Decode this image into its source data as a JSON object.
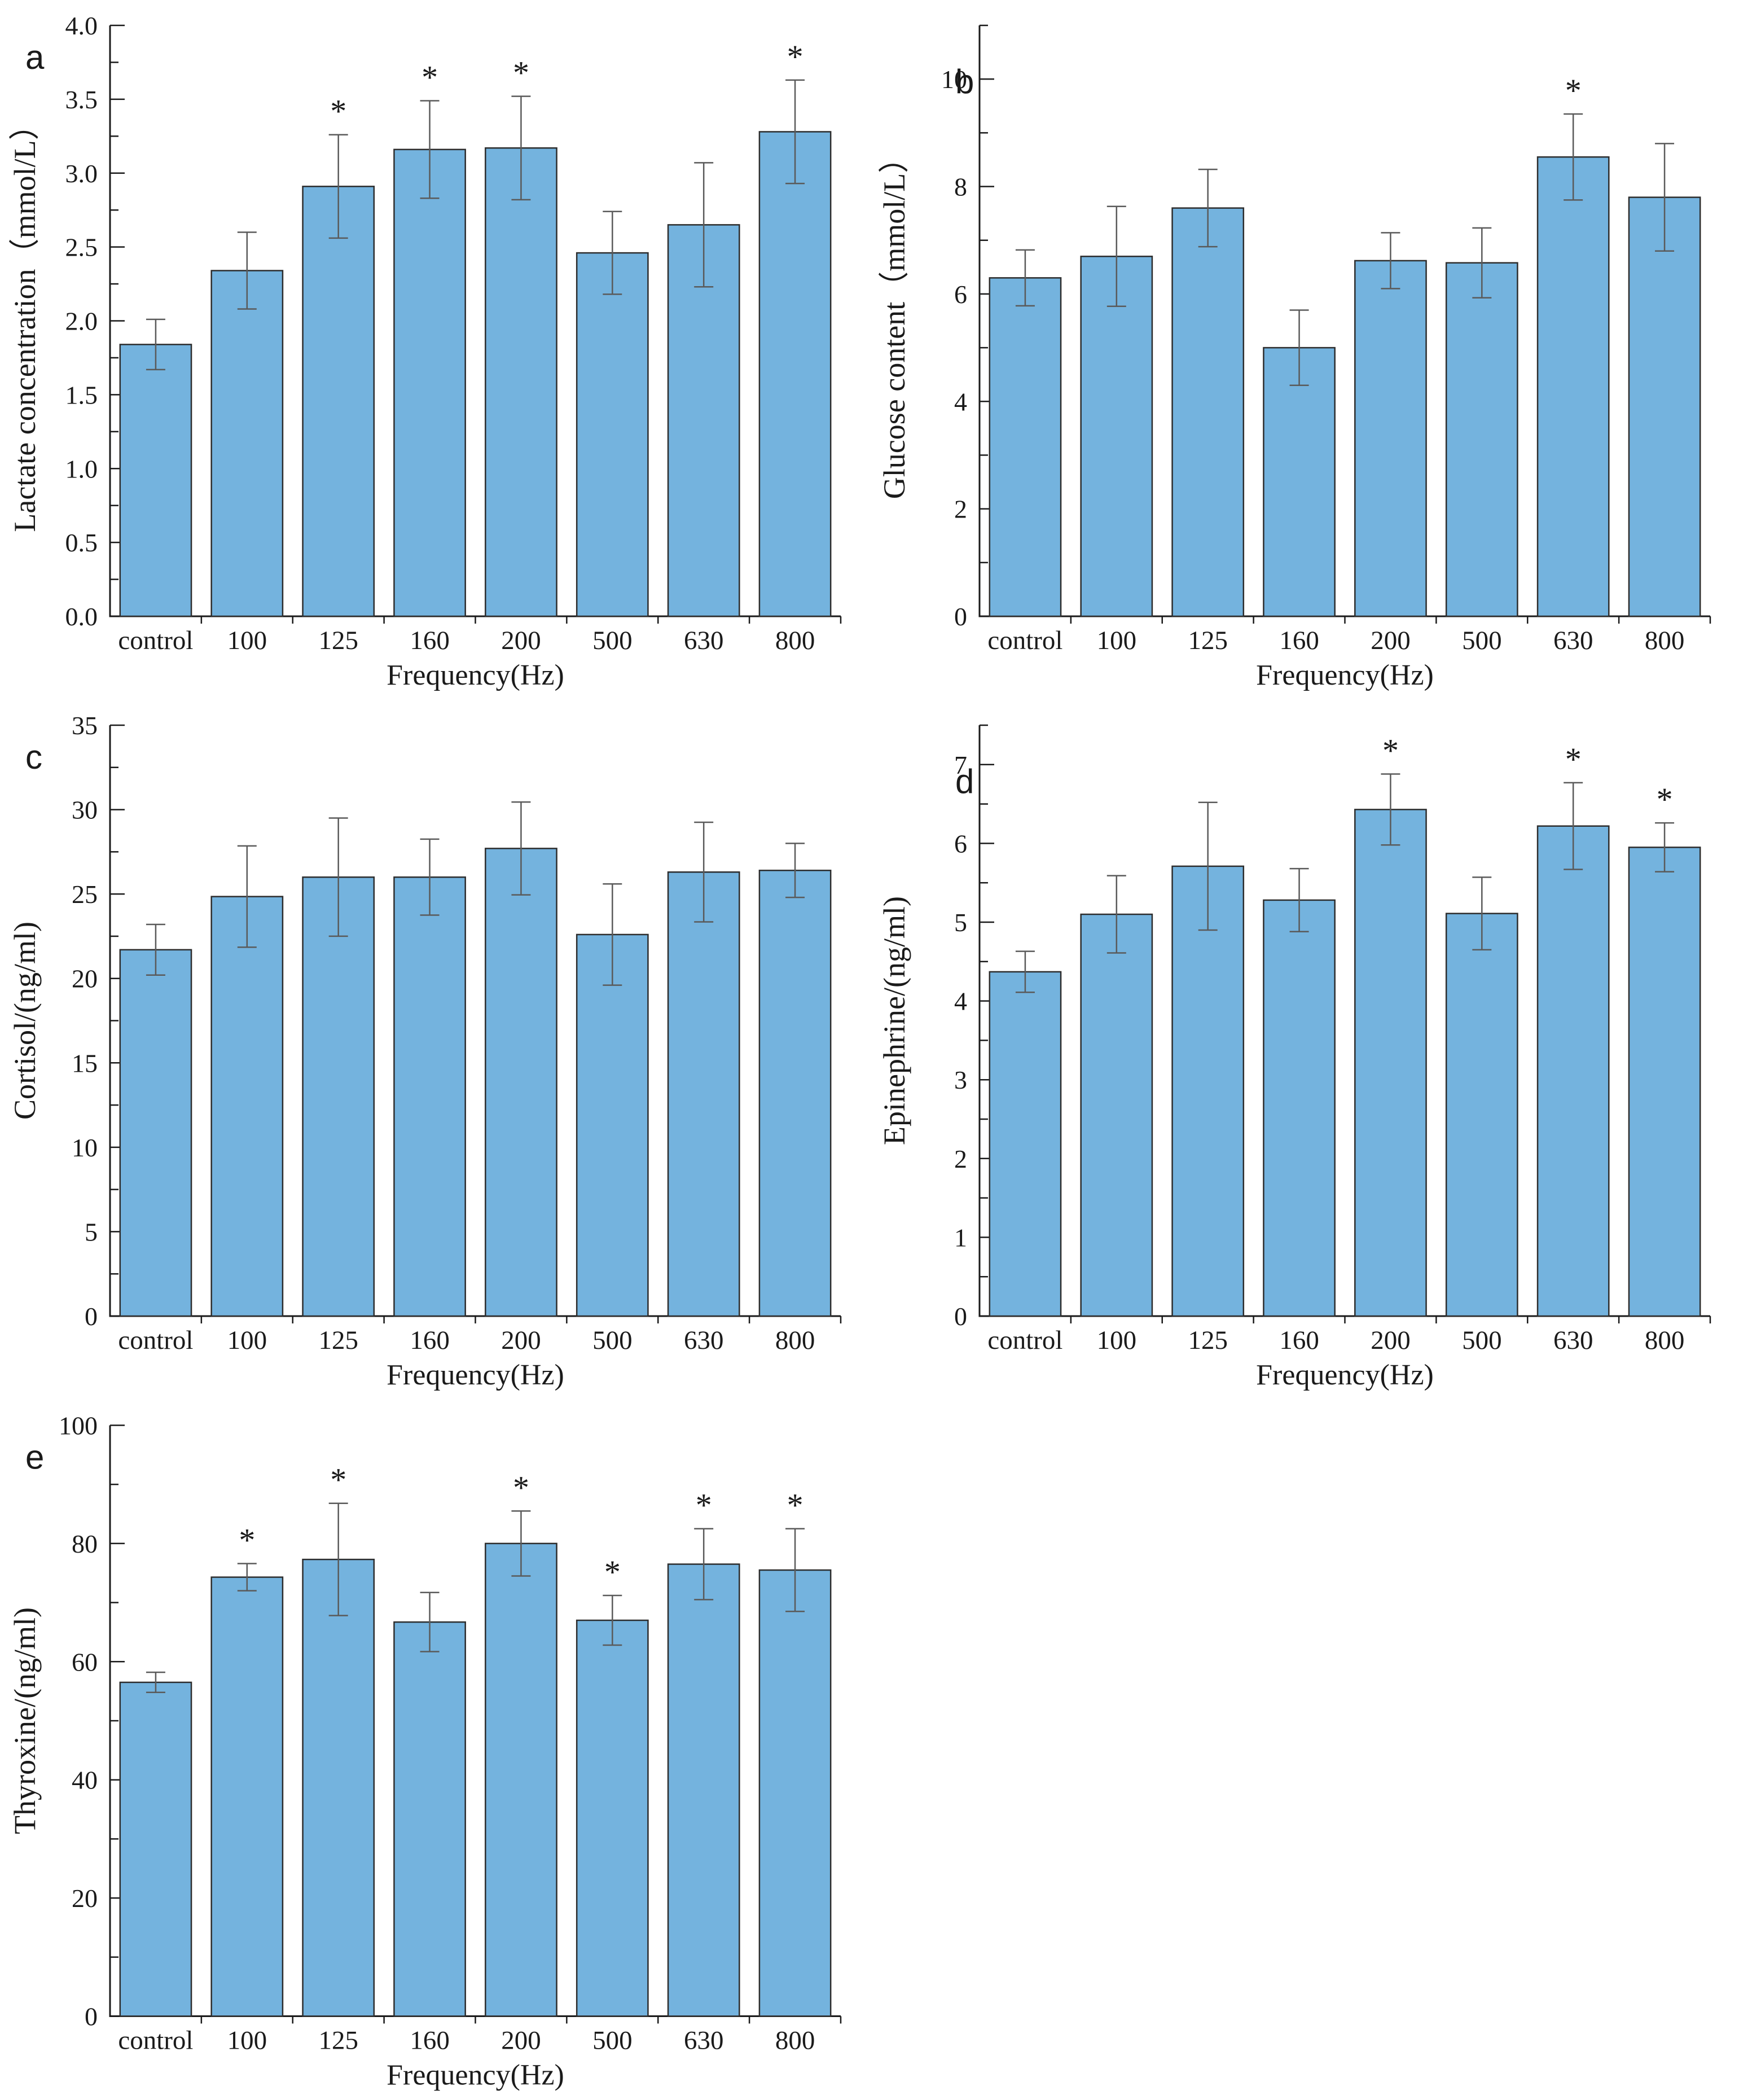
{
  "figure": {
    "background": "#ffffff",
    "style": {
      "bar_fill": "#74b3de",
      "bar_stroke": "#2d2d2d",
      "error_color": "#5a5a5a",
      "axis_color": "#1a1a1a",
      "significance_marker": "*"
    }
  },
  "chart_data": [
    {
      "type": "bar",
      "panel": "a",
      "title": "",
      "ylabel": "Lactate concentration（mmol/L）",
      "xlabel": "Frequency(Hz)",
      "categories": [
        "control",
        "100",
        "125",
        "160",
        "200",
        "500",
        "630",
        "800"
      ],
      "values": [
        1.84,
        2.34,
        2.91,
        3.16,
        3.17,
        2.46,
        2.65,
        3.28
      ],
      "errors": [
        0.17,
        0.26,
        0.35,
        0.33,
        0.35,
        0.28,
        0.42,
        0.35
      ],
      "significant": [
        false,
        false,
        true,
        true,
        true,
        false,
        false,
        true
      ],
      "ylim": [
        0,
        4.0
      ],
      "ytick_step": 0.5,
      "minor_step": 0.25,
      "ytick_decimals": 1,
      "grid": false,
      "legend": null
    },
    {
      "type": "bar",
      "panel": "b",
      "title": "",
      "ylabel": "Glucose content（mmol/L）",
      "xlabel": "Frequency(Hz)",
      "categories": [
        "control",
        "100",
        "125",
        "160",
        "200",
        "500",
        "630",
        "800"
      ],
      "values": [
        6.3,
        6.7,
        7.6,
        5.0,
        6.62,
        6.58,
        8.55,
        7.8
      ],
      "errors": [
        0.52,
        0.93,
        0.72,
        0.7,
        0.52,
        0.65,
        0.8,
        1.0
      ],
      "significant": [
        false,
        false,
        false,
        false,
        false,
        false,
        true,
        false
      ],
      "ylim": [
        0,
        11
      ],
      "ytick_step": 2,
      "minor_step": 1,
      "ytick_decimals": 0,
      "grid": false,
      "legend": null
    },
    {
      "type": "bar",
      "panel": "c",
      "title": "",
      "ylabel": "Cortisol/(ng/ml)",
      "xlabel": "Frequency(Hz)",
      "categories": [
        "control",
        "100",
        "125",
        "160",
        "200",
        "500",
        "630",
        "800"
      ],
      "values": [
        21.7,
        24.85,
        26.0,
        26.0,
        27.7,
        22.6,
        26.3,
        26.4
      ],
      "errors": [
        1.5,
        3.0,
        3.5,
        2.25,
        2.75,
        3.0,
        2.95,
        1.6
      ],
      "significant": [
        false,
        false,
        false,
        false,
        false,
        false,
        false,
        false
      ],
      "ylim": [
        0,
        35
      ],
      "ytick_step": 5,
      "minor_step": 2.5,
      "ytick_decimals": 0,
      "grid": false,
      "legend": null
    },
    {
      "type": "bar",
      "panel": "d",
      "title": "",
      "ylabel": "Epinephrine/(ng/ml)",
      "xlabel": "Frequency(Hz)",
      "categories": [
        "control",
        "100",
        "125",
        "160",
        "200",
        "500",
        "630",
        "800"
      ],
      "values": [
        4.37,
        5.1,
        5.71,
        5.28,
        6.43,
        5.11,
        6.22,
        5.95
      ],
      "errors": [
        0.26,
        0.49,
        0.81,
        0.4,
        0.45,
        0.46,
        0.55,
        0.31
      ],
      "significant": [
        false,
        false,
        false,
        false,
        true,
        false,
        true,
        true
      ],
      "ylim": [
        0,
        7.5
      ],
      "ytick_step": 1,
      "minor_step": 0.5,
      "ytick_decimals": 0,
      "grid": false,
      "legend": null
    },
    {
      "type": "bar",
      "panel": "e",
      "title": "",
      "ylabel": "Thyroxine/(ng/ml)",
      "xlabel": "Frequency(Hz)",
      "categories": [
        "control",
        "100",
        "125",
        "160",
        "200",
        "500",
        "630",
        "800"
      ],
      "values": [
        56.5,
        74.3,
        77.3,
        66.7,
        80.0,
        67.0,
        76.5,
        75.5
      ],
      "errors": [
        1.7,
        2.3,
        9.5,
        5.0,
        5.5,
        4.2,
        6.0,
        7.0
      ],
      "significant": [
        false,
        true,
        true,
        false,
        true,
        true,
        true,
        true
      ],
      "ylim": [
        0,
        100
      ],
      "ytick_step": 20,
      "minor_step": 10,
      "ytick_decimals": 0,
      "grid": false,
      "legend": null
    }
  ]
}
